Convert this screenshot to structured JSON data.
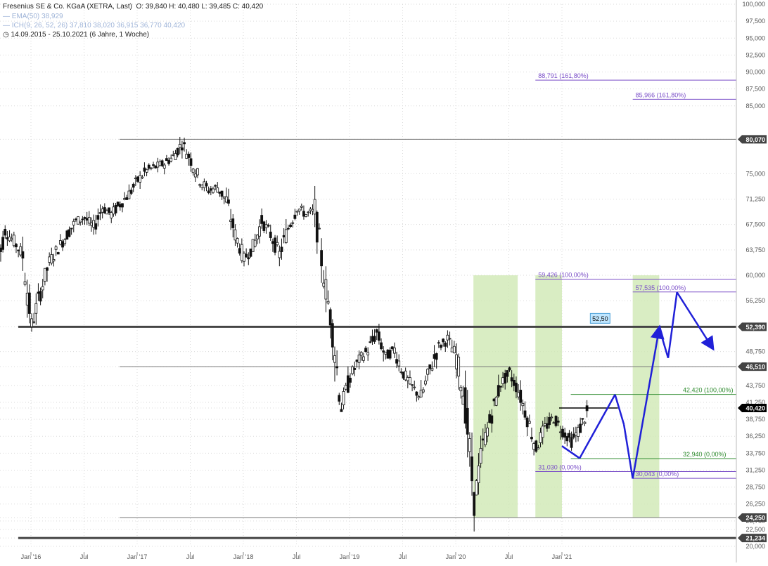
{
  "header": {
    "title": "Fresenius SE & Co. KGaA (XETRA, Last)",
    "ohlc": "O: 39,840  H: 40,480  L: 39,485  C: 40,420",
    "ema_label": "EMA(50)",
    "ema_value": "38,929",
    "ichimoku_label": "ICH(9, 26, 52, 26)",
    "ichimoku_values": "37,810  38,020  36,915  36,770  40,420",
    "period": "14.09.2015 - 25.10.2021  (6 Jahre, 1 Woche)"
  },
  "colors": {
    "candles": "#111111",
    "support_lines": "#555555",
    "fib_purple": "#7a4ec8",
    "fib_green": "#2e8b2e",
    "projection": "#2020d8",
    "zones": "#cfe8b4",
    "price_tag": "#000000"
  },
  "chart_data": {
    "type": "candlestick",
    "y_axis": {
      "position": "right",
      "ticks": [
        "100,000",
        "97,500",
        "95,000",
        "92,500",
        "90,000",
        "87,500",
        "85,000",
        "80,070",
        "75,000",
        "71,250",
        "67,500",
        "63,750",
        "60,000",
        "56,250",
        "52,390",
        "48,750",
        "46,510",
        "43,750",
        "41,250",
        "40,420",
        "38,750",
        "36,250",
        "33,750",
        "31,250",
        "28,750",
        "26,250",
        "24,250",
        "23,750",
        "22,500",
        "21,234",
        "20,000"
      ],
      "ylim": [
        20,
        100
      ]
    },
    "x_axis": {
      "ticks": [
        "Jan '16",
        "Jul",
        "Jan '17",
        "Jul",
        "Jan '18",
        "Jul",
        "Jan '19",
        "Jul",
        "Jan '20",
        "Jul",
        "Jan '21"
      ],
      "tick_dates": [
        "2016-01",
        "2016-07",
        "2017-01",
        "2017-07",
        "2018-01",
        "2018-07",
        "2019-01",
        "2019-07",
        "2020-01",
        "2020-07",
        "2021-01"
      ]
    },
    "price_path_monthly": [
      {
        "date": "2015-09",
        "close": 61.0
      },
      {
        "date": "2015-10",
        "close": 66.5
      },
      {
        "date": "2015-11",
        "close": 65.0
      },
      {
        "date": "2015-12",
        "close": 63.0
      },
      {
        "date": "2016-01",
        "close": 52.6
      },
      {
        "date": "2016-02",
        "close": 57.5
      },
      {
        "date": "2016-03",
        "close": 62.0
      },
      {
        "date": "2016-04",
        "close": 64.0
      },
      {
        "date": "2016-05",
        "close": 66.0
      },
      {
        "date": "2016-06",
        "close": 68.0
      },
      {
        "date": "2016-07",
        "close": 68.5
      },
      {
        "date": "2016-08",
        "close": 67.0
      },
      {
        "date": "2016-09",
        "close": 70.0
      },
      {
        "date": "2016-10",
        "close": 69.0
      },
      {
        "date": "2016-11",
        "close": 70.5
      },
      {
        "date": "2016-12",
        "close": 72.0
      },
      {
        "date": "2017-01",
        "close": 74.0
      },
      {
        "date": "2017-02",
        "close": 75.5
      },
      {
        "date": "2017-03",
        "close": 76.0
      },
      {
        "date": "2017-04",
        "close": 76.5
      },
      {
        "date": "2017-05",
        "close": 77.5
      },
      {
        "date": "2017-06",
        "close": 79.5
      },
      {
        "date": "2017-07",
        "close": 77.0
      },
      {
        "date": "2017-08",
        "close": 74.0
      },
      {
        "date": "2017-09",
        "close": 72.5
      },
      {
        "date": "2017-10",
        "close": 73.0
      },
      {
        "date": "2017-11",
        "close": 71.0
      },
      {
        "date": "2017-12",
        "close": 66.0
      },
      {
        "date": "2018-01",
        "close": 62.5
      },
      {
        "date": "2018-02",
        "close": 64.0
      },
      {
        "date": "2018-03",
        "close": 68.0
      },
      {
        "date": "2018-04",
        "close": 66.0
      },
      {
        "date": "2018-05",
        "close": 63.0
      },
      {
        "date": "2018-06",
        "close": 67.0
      },
      {
        "date": "2018-07",
        "close": 70.0
      },
      {
        "date": "2018-08",
        "close": 69.0
      },
      {
        "date": "2018-09",
        "close": 69.5
      },
      {
        "date": "2018-10",
        "close": 60.0
      },
      {
        "date": "2018-11",
        "close": 52.0
      },
      {
        "date": "2018-12",
        "close": 40.5
      },
      {
        "date": "2019-01",
        "close": 45.0
      },
      {
        "date": "2019-02",
        "close": 47.5
      },
      {
        "date": "2019-03",
        "close": 49.0
      },
      {
        "date": "2019-04",
        "close": 51.5
      },
      {
        "date": "2019-05",
        "close": 48.0
      },
      {
        "date": "2019-06",
        "close": 49.0
      },
      {
        "date": "2019-07",
        "close": 45.5
      },
      {
        "date": "2019-08",
        "close": 43.5
      },
      {
        "date": "2019-09",
        "close": 42.0
      },
      {
        "date": "2019-10",
        "close": 46.0
      },
      {
        "date": "2019-11",
        "close": 49.5
      },
      {
        "date": "2019-12",
        "close": 50.5
      },
      {
        "date": "2020-01",
        "close": 48.0
      },
      {
        "date": "2020-02",
        "close": 41.0
      },
      {
        "date": "2020-03",
        "close": 26.5
      },
      {
        "date": "2020-04",
        "close": 35.0
      },
      {
        "date": "2020-05",
        "close": 39.5
      },
      {
        "date": "2020-06",
        "close": 44.0
      },
      {
        "date": "2020-07",
        "close": 45.5
      },
      {
        "date": "2020-08",
        "close": 43.0
      },
      {
        "date": "2020-09",
        "close": 39.0
      },
      {
        "date": "2020-10",
        "close": 34.5
      },
      {
        "date": "2020-11",
        "close": 37.5
      },
      {
        "date": "2020-12",
        "close": 39.0
      },
      {
        "date": "2021-01",
        "close": 37.0
      },
      {
        "date": "2021-02",
        "close": 35.5
      },
      {
        "date": "2021-03",
        "close": 37.5
      },
      {
        "date": "2021-04",
        "close": 40.4
      }
    ],
    "horizontal_lines": [
      {
        "label": "80,070",
        "value": 80.07
      },
      {
        "label": "52,390",
        "value": 52.39
      },
      {
        "label": "46,510",
        "value": 46.51
      },
      {
        "label": "24,250",
        "value": 24.25
      },
      {
        "label": "21,234",
        "value": 21.234
      }
    ],
    "price_tag": {
      "label": "40,420",
      "value": 40.42
    },
    "annotation_box": {
      "label": "52,50",
      "value": 52.5
    },
    "fib_levels": [
      {
        "label": "88,791 (161,80%)",
        "value": 88.791,
        "color": "fib_purple"
      },
      {
        "label": "85,966 (161,80%)",
        "value": 85.966,
        "color": "fib_purple"
      },
      {
        "label": "59,426 (100,00%)",
        "value": 59.426,
        "color": "fib_purple"
      },
      {
        "label": "57,535 (100,00%)",
        "value": 57.535,
        "color": "fib_purple"
      },
      {
        "label": "42,420 (100,00%)",
        "value": 42.42,
        "color": "fib_green"
      },
      {
        "label": "32,940 (0,00%)",
        "value": 32.94,
        "color": "fib_green"
      },
      {
        "label": "31,030 (0,00%)",
        "value": 31.03,
        "color": "fib_purple"
      },
      {
        "label": "30,043 (0,00%)",
        "value": 30.043,
        "color": "fib_purple"
      }
    ],
    "time_zones": [
      {
        "from": "2020-03",
        "to": "2020-08"
      },
      {
        "from": "2020-10",
        "to": "2021-01"
      },
      {
        "from": "2021-09",
        "to": "2021-12"
      }
    ],
    "projection_path": [
      {
        "date": "2021-01",
        "price": 34.8
      },
      {
        "date": "2021-03",
        "price": 33.0
      },
      {
        "date": "2021-07",
        "price": 42.4
      },
      {
        "date": "2021-08",
        "price": 38.0
      },
      {
        "date": "2021-09",
        "price": 30.0
      },
      {
        "date": "2021-12",
        "price": 52.2
      },
      {
        "date": "2022-01",
        "price": 47.8
      },
      {
        "date": "2022-02",
        "price": 57.5
      },
      {
        "date": "2022-06",
        "price": 49.3
      }
    ],
    "trend_segment": {
      "from": "2021-01",
      "to": "2021-07",
      "price": 40.42
    }
  }
}
